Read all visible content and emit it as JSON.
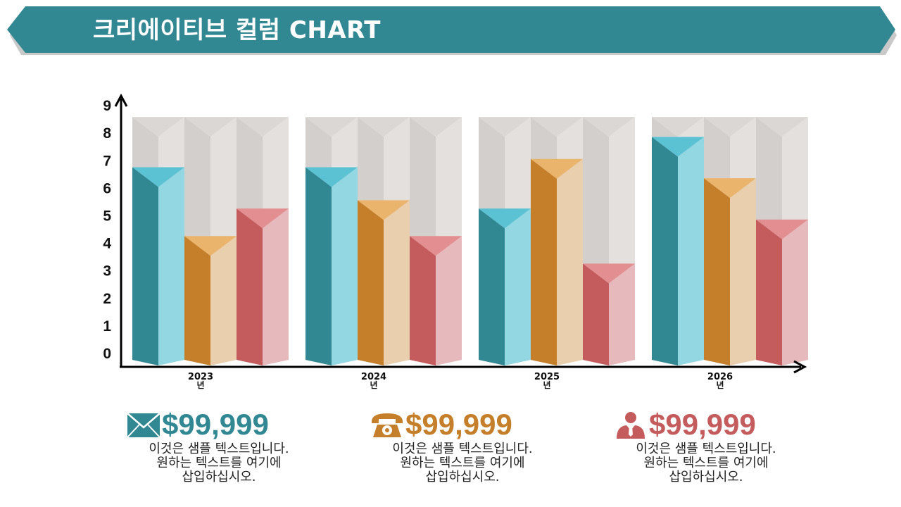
{
  "title": "크리에이티브 컬럼 CHART",
  "colors": {
    "banner": "#318893",
    "teal_dark": "#318893",
    "teal_light": "#92D7E1",
    "teal_cap": "#5BC2D4",
    "orange_dark": "#C57F2A",
    "orange_light": "#E9CFAE",
    "orange_cap": "#EBB46C",
    "red_dark": "#C45C5E",
    "red_light": "#E6B9BD",
    "red_cap": "#E38E90",
    "column_bg_dark": "#D2CFCC",
    "column_bg_light": "#E3E0DD"
  },
  "chart_data": {
    "type": "bar",
    "categories": [
      [
        "2023",
        "년"
      ],
      [
        "2024",
        "년"
      ],
      [
        "2025",
        "년"
      ],
      [
        "2026",
        "년"
      ]
    ],
    "series": [
      {
        "color": "teal",
        "values": [
          7.2,
          7.2,
          5.7,
          8.3
        ]
      },
      {
        "color": "orange",
        "values": [
          4.7,
          6.0,
          7.5,
          6.8
        ]
      },
      {
        "color": "red",
        "values": [
          5.7,
          4.7,
          3.7,
          5.3
        ]
      }
    ],
    "ylim": [
      0,
      9
    ],
    "yticks": [
      "0",
      "1",
      "2",
      "3",
      "4",
      "5",
      "6",
      "7",
      "8",
      "9"
    ],
    "grid": false,
    "legend": "none"
  },
  "info": [
    {
      "icon": "envelope-icon",
      "value": "$99,999",
      "color": "#318893",
      "lines": [
        "이것은 샘플 텍스트입니다.",
        "원하는 텍스트를 여기에",
        "삽입하십시오."
      ]
    },
    {
      "icon": "telephone-icon",
      "value": "$99,999",
      "color": "#C57F2A",
      "lines": [
        "이것은 샘플 텍스트입니다.",
        "원하는 텍스트를 여기에",
        "삽입하십시오."
      ]
    },
    {
      "icon": "person-icon",
      "value": "$99,999",
      "color": "#C45C5E",
      "lines": [
        "이것은 샘플 텍스트입니다.",
        "원하는 텍스트를 여기에",
        "삽입하십시오."
      ]
    }
  ]
}
